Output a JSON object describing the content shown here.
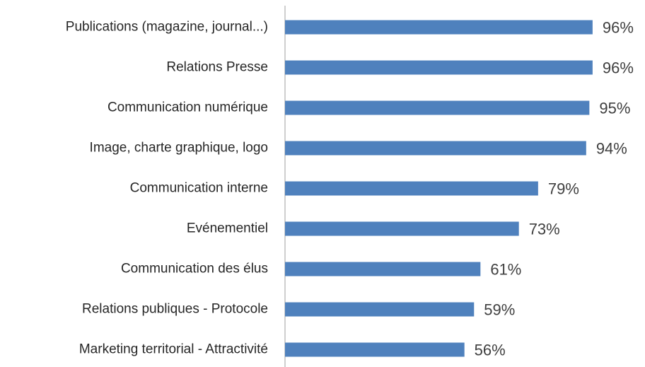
{
  "chart_data": {
    "type": "bar",
    "orientation": "horizontal",
    "categories": [
      "Publications (magazine, journal...)",
      "Relations Presse",
      "Communication numérique",
      "Image, charte graphique, logo",
      "Communication interne",
      "Evénementiel",
      "Communication des élus",
      "Relations publiques - Protocole",
      "Marketing territorial - Attractivité"
    ],
    "values": [
      96,
      96,
      95,
      94,
      79,
      73,
      61,
      59,
      56
    ],
    "value_labels": [
      "96%",
      "96%",
      "95%",
      "94%",
      "79%",
      "73%",
      "61%",
      "59%",
      "56%"
    ],
    "color": "#4f81bd",
    "xlim": [
      0,
      100
    ]
  }
}
